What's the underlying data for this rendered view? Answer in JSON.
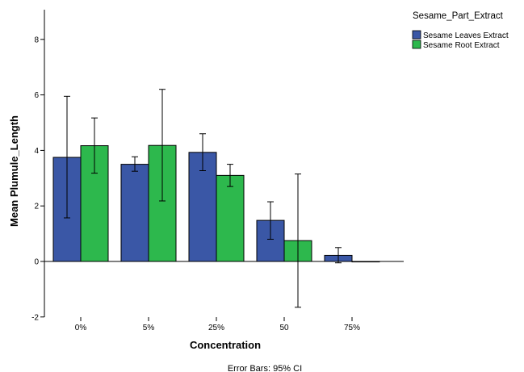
{
  "chart_data": {
    "type": "bar",
    "title": "",
    "xlabel": "Concentration",
    "ylabel": "Mean Plumule_Length",
    "categories": [
      "0%",
      "5%",
      "25%",
      "50",
      "75%"
    ],
    "ylim": [
      -2,
      9
    ],
    "yticks": [
      -2,
      0,
      2,
      4,
      6,
      8
    ],
    "grid": false,
    "legend": {
      "title": "Sesame_Part_Extract",
      "position": "top-right"
    },
    "series": [
      {
        "name": "Sesame Leaves Extract",
        "color": "#3a57a6",
        "values": [
          3.75,
          3.5,
          3.93,
          1.48,
          0.22
        ],
        "ci_low": [
          1.57,
          3.25,
          3.27,
          0.8,
          -0.05
        ],
        "ci_high": [
          5.95,
          3.77,
          4.6,
          2.15,
          0.5
        ]
      },
      {
        "name": "Sesame Root Extract",
        "color": "#2db84d",
        "values": [
          4.17,
          4.18,
          3.1,
          0.75,
          0.0
        ],
        "ci_low": [
          3.18,
          2.18,
          2.7,
          -1.65,
          0.0
        ],
        "ci_high": [
          5.17,
          6.2,
          3.5,
          3.15,
          0.0
        ]
      }
    ],
    "footnote": "Error Bars: 95% CI"
  }
}
